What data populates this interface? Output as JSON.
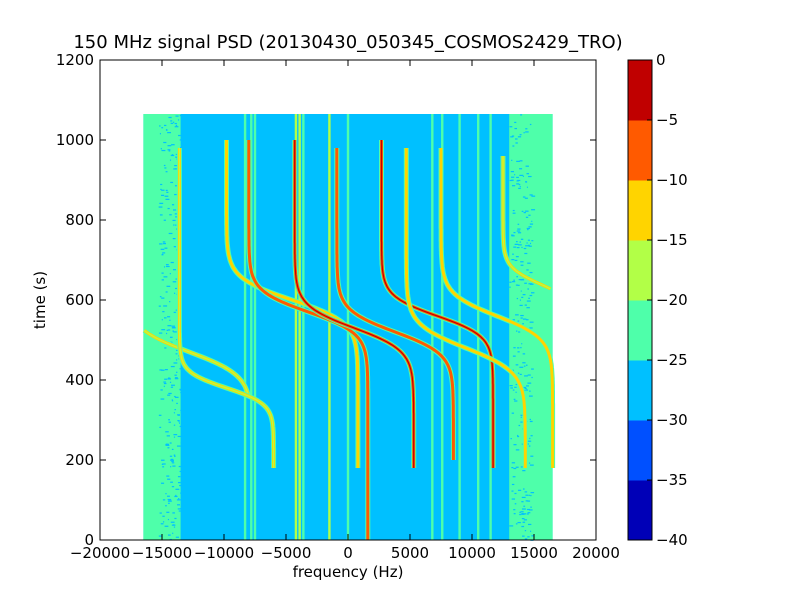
{
  "chart_data": {
    "type": "heatmap",
    "title": "150 MHz signal PSD (20130430_050345_COSMOS2429_TRO)",
    "xlabel": "frequency (Hz)",
    "ylabel": "time (s)",
    "xlim": [
      -20000,
      20000
    ],
    "ylim": [
      0,
      1200
    ],
    "xticks": [
      -20000,
      -15000,
      -10000,
      -5000,
      0,
      5000,
      10000,
      15000,
      20000
    ],
    "xtick_labels": [
      "−20000",
      "−15000",
      "−10000",
      "−5000",
      "0",
      "5000",
      "10000",
      "15000",
      "20000"
    ],
    "yticks": [
      0,
      200,
      400,
      600,
      800,
      1000,
      1200
    ],
    "ytick_labels": [
      "0",
      "200",
      "400",
      "600",
      "800",
      "1000",
      "1200"
    ],
    "data_extent": {
      "x": [
        -16500,
        16500
      ],
      "y": [
        0,
        1065
      ]
    },
    "background_level": -28,
    "noise_floor_level": -23,
    "noise_floor_regions": [
      {
        "x": [
          -16500,
          -13500
        ],
        "level": -23
      },
      {
        "x": [
          13000,
          16500
        ],
        "level": -23
      }
    ],
    "vertical_lines": [
      {
        "x": -8300,
        "level": -22
      },
      {
        "x": -7800,
        "level": -22
      },
      {
        "x": -7500,
        "level": -22
      },
      {
        "x": -4200,
        "level": -20
      },
      {
        "x": -3900,
        "level": -20
      },
      {
        "x": -3600,
        "level": -22
      },
      {
        "x": -1500,
        "level": -20
      },
      {
        "x": 0,
        "level": -22
      },
      {
        "x": 6800,
        "level": -24
      },
      {
        "x": 7600,
        "level": -24
      },
      {
        "x": 9000,
        "level": -24
      },
      {
        "x": 10500,
        "level": -24
      },
      {
        "x": 11500,
        "level": -22
      }
    ],
    "doppler_traces": [
      {
        "name": "trace 1",
        "t_center": 470,
        "f_center": -12800,
        "df_per_s": -85,
        "halfwidth": 5000,
        "t_range": [
          360,
          1000
        ],
        "level": -16
      },
      {
        "name": "trace 2",
        "t_center": 380,
        "f_center": -9800,
        "df_per_s": -95,
        "halfwidth": 3800,
        "t_range": [
          180,
          980
        ],
        "level": -18
      },
      {
        "name": "trace 3",
        "t_center": 600,
        "f_center": -4500,
        "df_per_s": -95,
        "halfwidth": 5300,
        "t_range": [
          180,
          1000
        ],
        "level": -12
      },
      {
        "name": "trace 4",
        "t_center": 570,
        "f_center": -3200,
        "df_per_s": -90,
        "halfwidth": 4800,
        "t_range": [
          0,
          1000
        ],
        "level": -6
      },
      {
        "name": "trace 5",
        "t_center": 530,
        "f_center": 500,
        "df_per_s": -85,
        "halfwidth": 4800,
        "t_range": [
          180,
          1000
        ],
        "level": -4
      },
      {
        "name": "trace 6",
        "t_center": 520,
        "f_center": 3800,
        "df_per_s": -85,
        "halfwidth": 4700,
        "t_range": [
          200,
          980
        ],
        "level": -6
      },
      {
        "name": "trace 7",
        "t_center": 560,
        "f_center": 7200,
        "df_per_s": -90,
        "halfwidth": 4500,
        "t_range": [
          180,
          1000
        ],
        "level": -4
      },
      {
        "name": "trace 8",
        "t_center": 480,
        "f_center": 9500,
        "df_per_s": -80,
        "halfwidth": 4800,
        "t_range": [
          180,
          980
        ],
        "level": -12
      },
      {
        "name": "trace 9",
        "t_center": 560,
        "f_center": 12000,
        "df_per_s": -80,
        "halfwidth": 4500,
        "t_range": [
          180,
          980
        ],
        "level": -15
      },
      {
        "name": "trace 10",
        "t_center": 640,
        "f_center": 15500,
        "df_per_s": -70,
        "halfwidth": 3000,
        "t_range": [
          500,
          960
        ],
        "level": -16
      }
    ],
    "colorbar": {
      "levels": [
        -40,
        -35,
        -30,
        -25,
        -20,
        -15,
        -10,
        -5,
        0
      ],
      "tick_labels": [
        "−40",
        "−35",
        "−30",
        "−25",
        "−20",
        "−15",
        "−10",
        "−5",
        "0"
      ],
      "colors": [
        "#0000b7",
        "#0050ff",
        "#00c0ff",
        "#4effaa",
        "#b2ff47",
        "#ffd400",
        "#ff5a00",
        "#c00000"
      ]
    },
    "grid": false,
    "legend": "none"
  }
}
